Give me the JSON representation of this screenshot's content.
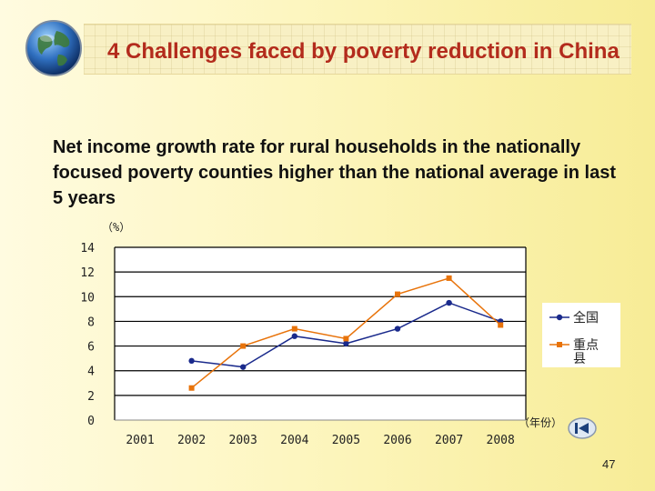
{
  "slide": {
    "title": "4 Challenges faced by poverty reduction in China",
    "subtitle": "Net income growth rate for rural households in the nationally focused poverty counties higher than the national average in last 5 years",
    "page_number": "47"
  },
  "icons": {
    "logo": "globe-icon",
    "nav": "back-arrow-icon"
  },
  "colors": {
    "title": "#b32b1c",
    "national_series": "#1a2a8c",
    "focus_series": "#e8730a"
  },
  "chart_data": {
    "type": "line",
    "title": "",
    "ylabel": "（%）",
    "xlabel": "（年份）",
    "ylim": [
      0,
      14
    ],
    "yticks": [
      0,
      2,
      4,
      6,
      8,
      10,
      12,
      14
    ],
    "categories": [
      "2001",
      "2002",
      "2003",
      "2004",
      "2005",
      "2006",
      "2007",
      "2008"
    ],
    "grid": "horizontal",
    "legend_position": "right",
    "series": [
      {
        "name": "全国",
        "marker": "circle",
        "color": "#1a2a8c",
        "values": [
          null,
          4.8,
          4.3,
          6.8,
          6.2,
          7.4,
          9.5,
          8.0
        ]
      },
      {
        "name": "重点县",
        "marker": "square",
        "color": "#e8730a",
        "values": [
          null,
          2.6,
          6.0,
          7.4,
          6.6,
          10.2,
          11.5,
          7.7
        ]
      }
    ]
  }
}
